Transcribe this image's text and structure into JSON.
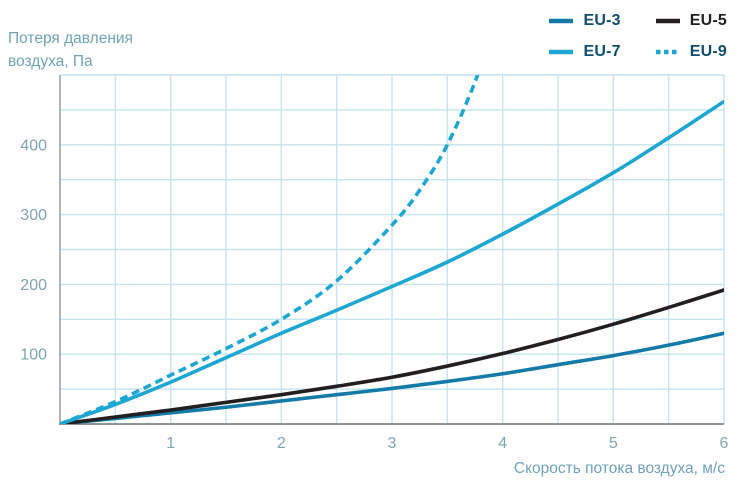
{
  "header": {
    "ylabel_line1": "Потеря давления",
    "ylabel_line2": "воздуха, Па",
    "xlabel": "Скорость потока воздуха, м/с"
  },
  "colors": {
    "background": "#ffffff",
    "grid": "#c3e4f0",
    "axis": "#8d9598",
    "tick_label": "#7fa4b4",
    "axis_title": "#6fa3b8"
  },
  "chart_data": {
    "type": "line",
    "title": "",
    "xlabel": "Скорость потока воздуха, м/с",
    "ylabel": "Потеря давления воздуха, Па",
    "xlim": [
      0,
      6
    ],
    "ylim": [
      0,
      500
    ],
    "x_ticks": [
      1,
      2,
      3,
      4,
      5,
      6
    ],
    "y_ticks": [
      100,
      200,
      300,
      400
    ],
    "x_grid_step": 0.5,
    "y_grid_step": 50,
    "grid": true,
    "legend_position": "top-right",
    "series": [
      {
        "name": "EU-3",
        "color": "#147aa8",
        "label_color": "#0f4e6e",
        "style": "solid",
        "points": [
          [
            0,
            0
          ],
          [
            0.5,
            8
          ],
          [
            1,
            16
          ],
          [
            1.5,
            24
          ],
          [
            2,
            33
          ],
          [
            2.5,
            42
          ],
          [
            3,
            51
          ],
          [
            3.5,
            61
          ],
          [
            4,
            72
          ],
          [
            4.5,
            85
          ],
          [
            5,
            98
          ],
          [
            5.5,
            113
          ],
          [
            6,
            130
          ]
        ]
      },
      {
        "name": "EU-5",
        "color": "#231f20",
        "label_color": "#231f20",
        "style": "solid",
        "points": [
          [
            0,
            0
          ],
          [
            0.5,
            10
          ],
          [
            1,
            20
          ],
          [
            1.5,
            31
          ],
          [
            2,
            42
          ],
          [
            2.5,
            54
          ],
          [
            3,
            67
          ],
          [
            3.5,
            83
          ],
          [
            4,
            101
          ],
          [
            4.5,
            121
          ],
          [
            5,
            143
          ],
          [
            5.5,
            167
          ],
          [
            6,
            192
          ]
        ]
      },
      {
        "name": "EU-7",
        "color": "#1da7d2",
        "label_color": "#0f4e6e",
        "style": "solid",
        "points": [
          [
            0,
            0
          ],
          [
            0.5,
            28
          ],
          [
            1,
            60
          ],
          [
            1.5,
            95
          ],
          [
            2,
            130
          ],
          [
            2.5,
            163
          ],
          [
            3,
            197
          ],
          [
            3.5,
            232
          ],
          [
            4,
            272
          ],
          [
            4.5,
            315
          ],
          [
            5,
            360
          ],
          [
            5.5,
            410
          ],
          [
            6,
            462
          ]
        ]
      },
      {
        "name": "EU-9",
        "color": "#1da7d2",
        "label_color": "#0f4e6e",
        "style": "dashed",
        "points": [
          [
            0,
            0
          ],
          [
            0.5,
            32
          ],
          [
            1,
            70
          ],
          [
            1.5,
            108
          ],
          [
            2,
            150
          ],
          [
            2.5,
            205
          ],
          [
            3,
            285
          ],
          [
            3.25,
            335
          ],
          [
            3.5,
            400
          ],
          [
            3.75,
            490
          ],
          [
            3.85,
            545
          ]
        ]
      }
    ]
  }
}
